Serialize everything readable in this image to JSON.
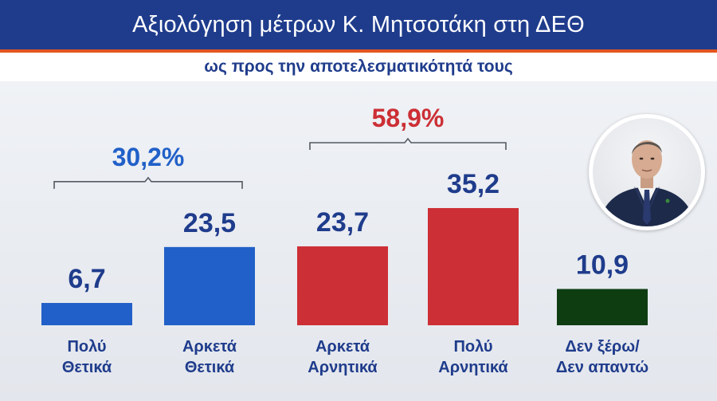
{
  "header": {
    "title": "Αξιολόγηση μέτρων Κ. Μητσοτάκη στη ΔΕΘ",
    "subtitle": "ως προς την αποτελεσματικότητά τους"
  },
  "colors": {
    "positive": "#2160c8",
    "negative": "#cc2f35",
    "unsure": "#0f3d12",
    "label": "#1f3c8c",
    "positive_total": "#2160c8",
    "negative_total": "#cc2f35"
  },
  "chart_data": {
    "type": "bar",
    "categories": [
      [
        "Πολύ",
        "Θετικά"
      ],
      [
        "Αρκετά",
        "Θετικά"
      ],
      [
        "Αρκετά",
        "Αρνητικά"
      ],
      [
        "Πολύ",
        "Αρνητικά"
      ],
      [
        "Δεν ξέρω/",
        "Δεν απαντώ"
      ]
    ],
    "values": [
      6.7,
      23.5,
      23.7,
      35.2,
      10.9
    ],
    "value_labels": [
      "6,7",
      "23,5",
      "23,7",
      "35,2",
      "10,9"
    ],
    "groups_by_bar": [
      "positive",
      "positive",
      "negative",
      "negative",
      "unsure"
    ],
    "ylim": [
      0,
      35.2
    ],
    "brackets": [
      {
        "label": "30,2%",
        "from": 0,
        "to": 1,
        "group": "positive"
      },
      {
        "label": "58,9%",
        "from": 2,
        "to": 3,
        "group": "negative"
      }
    ]
  },
  "avatar_label": "person-portrait"
}
